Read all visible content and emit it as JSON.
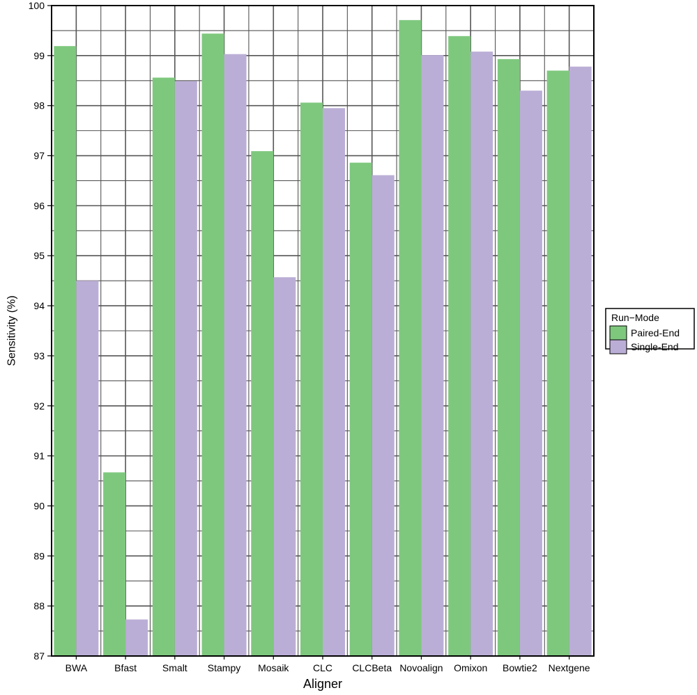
{
  "chart_data": {
    "type": "bar",
    "xlabel": "Aligner",
    "ylabel": "Sensitivity (%)",
    "ylim": [
      87,
      100
    ],
    "yticks": [
      "87",
      "88",
      "89",
      "90",
      "91",
      "92",
      "93",
      "94",
      "95",
      "96",
      "97",
      "98",
      "99",
      "100"
    ],
    "grid": true,
    "legend_position": "right",
    "categories": [
      "BWA",
      "Bfast",
      "Smalt",
      "Stampy",
      "Mosaik",
      "CLC",
      "CLCBeta",
      "Novoalign",
      "Omixon",
      "Bowtie2",
      "Nextgene"
    ],
    "series": [
      {
        "name": "Paired-End",
        "color": "#7ec87e",
        "values": [
          99.19,
          90.67,
          98.56,
          99.44,
          97.09,
          98.06,
          96.86,
          99.71,
          99.39,
          98.93,
          98.7
        ]
      },
      {
        "name": "Single-End",
        "color": "#bbaed6",
        "values": [
          94.5,
          87.73,
          98.49,
          99.03,
          94.57,
          97.95,
          96.61,
          99.01,
          99.08,
          98.3,
          98.78
        ]
      }
    ]
  },
  "legend": {
    "title": "Run−Mode",
    "items": [
      {
        "label": "Paired-End",
        "color": "#7ec87e"
      },
      {
        "label": "Single-End",
        "color": "#bbaed6"
      }
    ]
  }
}
